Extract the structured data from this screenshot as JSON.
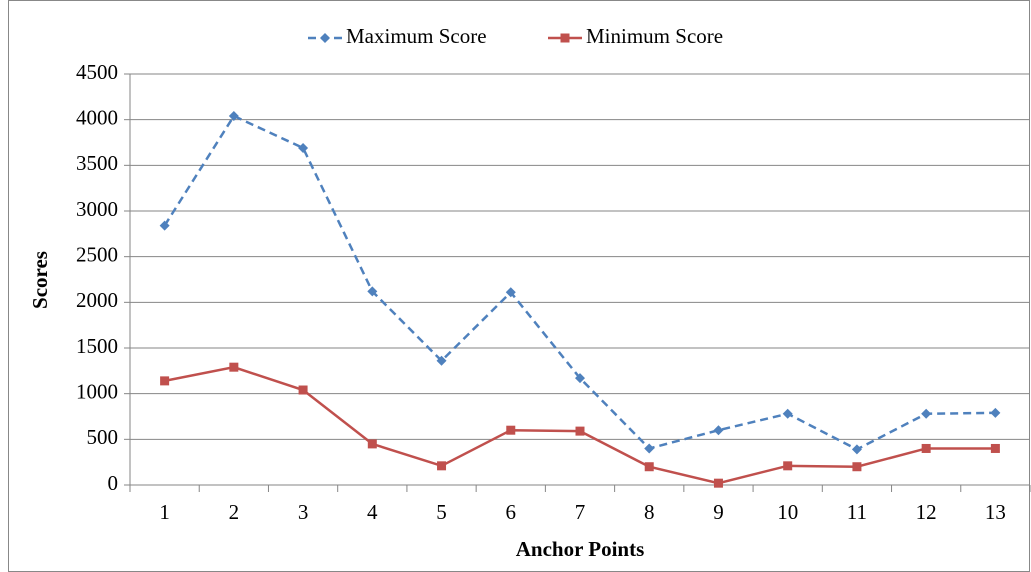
{
  "chart_data": {
    "type": "line",
    "xlabel": "Anchor Points",
    "ylabel": "Scores",
    "categories": [
      "1",
      "2",
      "3",
      "4",
      "5",
      "6",
      "7",
      "8",
      "9",
      "10",
      "11",
      "12",
      "13"
    ],
    "series": [
      {
        "name": "Maximum Score",
        "color": "#4f81bd",
        "dash": true,
        "marker": "diamond",
        "values": [
          2840,
          4040,
          3690,
          2120,
          1360,
          2110,
          1170,
          400,
          600,
          780,
          390,
          780,
          790
        ]
      },
      {
        "name": "Minimum Score",
        "color": "#c0504d",
        "dash": false,
        "marker": "square",
        "values": [
          1140,
          1290,
          1040,
          450,
          210,
          600,
          590,
          200,
          20,
          210,
          200,
          400,
          400
        ]
      }
    ],
    "ylim": [
      0,
      4500
    ],
    "yticks": [
      0,
      500,
      1000,
      1500,
      2000,
      2500,
      3000,
      3500,
      4000,
      4500
    ],
    "grid": true,
    "legend": "top"
  }
}
